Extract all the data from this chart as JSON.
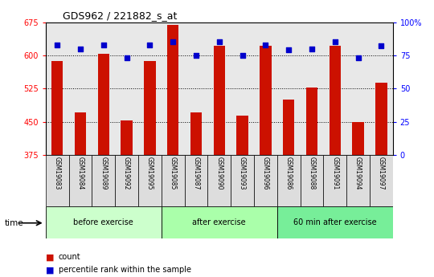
{
  "title": "GDS962 / 221882_s_at",
  "categories": [
    "GSM19083",
    "GSM19084",
    "GSM19089",
    "GSM19092",
    "GSM19095",
    "GSM19085",
    "GSM19087",
    "GSM19090",
    "GSM19093",
    "GSM19096",
    "GSM19086",
    "GSM19088",
    "GSM19091",
    "GSM19094",
    "GSM19097"
  ],
  "bar_values": [
    588,
    472,
    604,
    454,
    588,
    668,
    472,
    622,
    464,
    622,
    500,
    527,
    622,
    449,
    539
  ],
  "blue_values": [
    83,
    80,
    83,
    73,
    83,
    85,
    75,
    85,
    75,
    83,
    79,
    80,
    85,
    73,
    82
  ],
  "bar_color": "#CC1100",
  "blue_color": "#0000CC",
  "ylim_left": [
    375,
    675
  ],
  "ylim_right": [
    0,
    100
  ],
  "yticks_left": [
    375,
    450,
    525,
    600,
    675
  ],
  "yticks_right": [
    0,
    25,
    50,
    75,
    100
  ],
  "groups": [
    {
      "label": "before exercise",
      "start": 0,
      "end": 5
    },
    {
      "label": "after exercise",
      "start": 5,
      "end": 10
    },
    {
      "label": "60 min after exercise",
      "start": 10,
      "end": 15
    }
  ],
  "group_colors": [
    "#CCFFCC",
    "#AAFFAA",
    "#77EE99"
  ],
  "plot_bg_color": "#E8E8E8",
  "time_label": "time",
  "legend_count_label": "count",
  "legend_pct_label": "percentile rank within the sample"
}
